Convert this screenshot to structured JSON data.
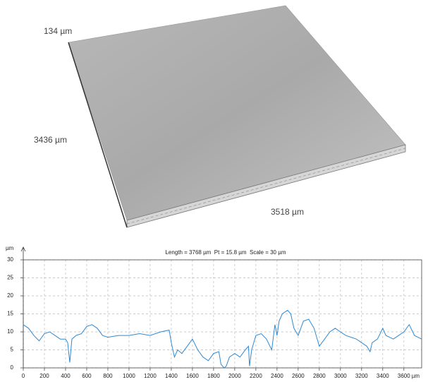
{
  "surface": {
    "height_label": "134 µm",
    "width_label": "3436 µm",
    "length_label": "3518 µm"
  },
  "chart_data": {
    "type": "line",
    "title": "Length = 3768 µm  Pt = 15.8 µm  Scale = 30 µm",
    "x_label": "µm",
    "y_label": "µm",
    "x": [
      0,
      50,
      100,
      150,
      200,
      250,
      300,
      350,
      400,
      420,
      440,
      460,
      500,
      550,
      600,
      650,
      700,
      750,
      800,
      900,
      1000,
      1100,
      1200,
      1300,
      1380,
      1400,
      1430,
      1460,
      1500,
      1550,
      1600,
      1650,
      1700,
      1750,
      1800,
      1850,
      1870,
      1900,
      1920,
      1950,
      2000,
      2050,
      2100,
      2130,
      2140,
      2160,
      2200,
      2250,
      2300,
      2350,
      2380,
      2400,
      2420,
      2450,
      2500,
      2530,
      2560,
      2600,
      2650,
      2700,
      2750,
      2800,
      2850,
      2900,
      2950,
      3000,
      3050,
      3100,
      3150,
      3200,
      3250,
      3280,
      3300,
      3350,
      3400,
      3430,
      3500,
      3550,
      3600,
      3650,
      3700,
      3768
    ],
    "series": [
      {
        "color": "#2f8ad3",
        "values": [
          12,
          11,
          9,
          7.5,
          9.5,
          10,
          9,
          8,
          8,
          7,
          1.5,
          8,
          9,
          9.5,
          11.5,
          12,
          11,
          9,
          8.5,
          9,
          9,
          9.5,
          9,
          10,
          10.5,
          7,
          3,
          5,
          4,
          6,
          8,
          5,
          3,
          2,
          4,
          4.5,
          1,
          0,
          0.5,
          3,
          4,
          3,
          5,
          6,
          0.5,
          5,
          9,
          9.5,
          8,
          5,
          12,
          9,
          13,
          15,
          16,
          15,
          11,
          9,
          13,
          13.5,
          11,
          6,
          8,
          10,
          11,
          10,
          9,
          8.5,
          8,
          7,
          6,
          4.5,
          7,
          8,
          11,
          9,
          8,
          9,
          10,
          12,
          9,
          8
        ]
      }
    ],
    "xlim": [
      0,
      3768
    ],
    "ylim": [
      0,
      30
    ],
    "xticks": [
      0,
      200,
      400,
      600,
      800,
      1000,
      1200,
      1400,
      1600,
      1800,
      2000,
      2200,
      2400,
      2600,
      2800,
      3000,
      3200,
      3400,
      3600
    ],
    "yticks": [
      0,
      5,
      10,
      15,
      20,
      25,
      30
    ],
    "grid": true
  }
}
